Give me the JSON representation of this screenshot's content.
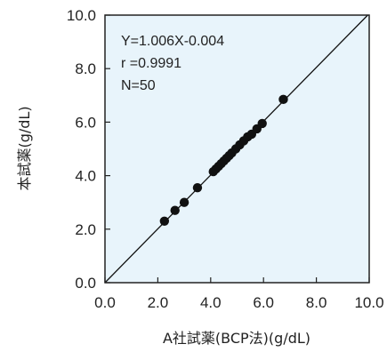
{
  "chart_data": {
    "type": "scatter",
    "title": "",
    "xlabel": "A社試薬(BCP法)(g/dL)",
    "ylabel": "本試薬(g/dL)",
    "xlim": [
      0,
      10
    ],
    "ylim": [
      0,
      10
    ],
    "xticks": [
      "0.0",
      "2.0",
      "4.0",
      "6.0",
      "8.0",
      "10.0"
    ],
    "yticks": [
      "0.0",
      "2.0",
      "4.0",
      "6.0",
      "8.0",
      "10.0"
    ],
    "grid": false,
    "annotations": {
      "equation": "Y=1.006X-0.004",
      "r": "r =0.9991",
      "n": "N=50"
    },
    "regression": {
      "slope": 1.006,
      "intercept": -0.004
    },
    "colors": {
      "plot_background": "#e8f4fb",
      "points": "#111111",
      "line": "#111111",
      "axes": "#222222"
    },
    "series": [
      {
        "x": [
          2.25,
          2.65,
          3.0,
          3.5,
          4.1,
          4.2,
          4.3,
          4.4,
          4.5,
          4.6,
          4.7,
          4.8,
          4.95,
          5.1,
          5.25,
          5.4,
          5.55,
          5.75,
          5.95,
          6.75
        ],
        "y": [
          2.3,
          2.7,
          3.0,
          3.55,
          4.15,
          4.25,
          4.35,
          4.45,
          4.55,
          4.65,
          4.75,
          4.85,
          5.0,
          5.15,
          5.3,
          5.45,
          5.55,
          5.75,
          5.95,
          6.85
        ]
      }
    ]
  }
}
